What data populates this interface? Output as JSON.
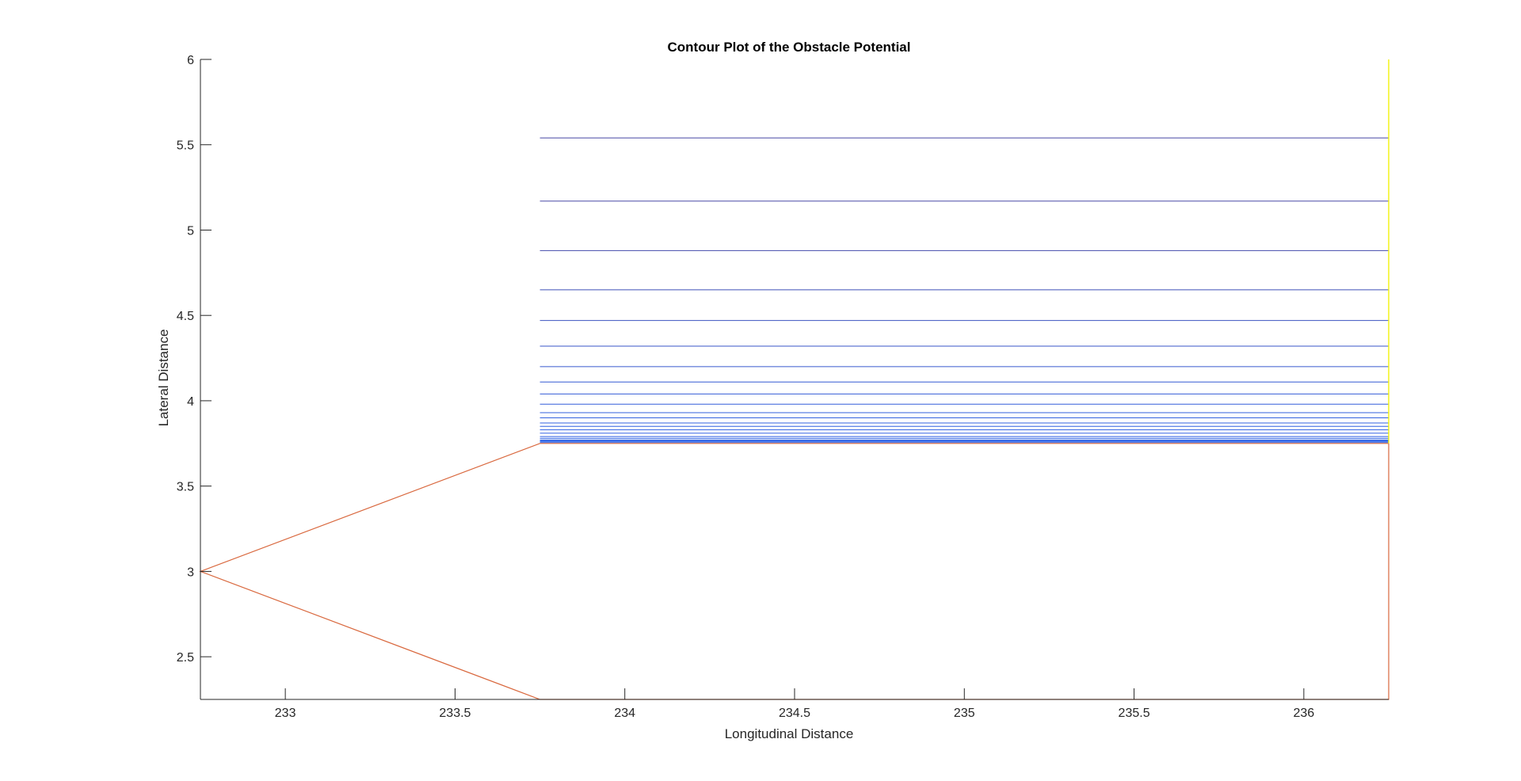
{
  "chart_data": {
    "type": "line",
    "title": "Contour Plot of the Obstacle Potential",
    "xlabel": "Longitudinal Distance",
    "ylabel": "Lateral Distance",
    "xlim": [
      232.75,
      236.25
    ],
    "ylim": [
      2.25,
      6.0
    ],
    "xticks": [
      233,
      233.5,
      234,
      234.5,
      235,
      235.5,
      236
    ],
    "xtick_labels": [
      "233",
      "233.5",
      "234",
      "234.5",
      "235",
      "235.5",
      "236"
    ],
    "yticks": [
      2.5,
      3,
      3.5,
      4,
      4.5,
      5,
      5.5,
      6
    ],
    "ytick_labels": [
      "2.5",
      "3",
      "3.5",
      "4",
      "4.5",
      "5",
      "5.5",
      "6"
    ],
    "grid": false,
    "colors": {
      "obstacle": "#d9683e",
      "contour_low": "#2f63e6",
      "contour_high": "#4646a4",
      "yellow_edge": "#f2f20c",
      "axis": "#262626"
    },
    "contour_x_range": [
      233.75,
      236.25
    ],
    "contour_levels_y": [
      5.54,
      5.17,
      4.88,
      4.65,
      4.47,
      4.32,
      4.2,
      4.11,
      4.04,
      3.98,
      3.93,
      3.9,
      3.87,
      3.85,
      3.83,
      3.81,
      3.79,
      3.78,
      3.77,
      3.765,
      3.76,
      3.755
    ],
    "series": [
      {
        "x": [
          236.25,
          233.75,
          232.75,
          233.75,
          236.25,
          236.25
        ],
        "y": [
          3.75,
          3.75,
          3.0,
          2.25,
          2.25,
          3.75
        ]
      },
      {
        "x": [
          236.25,
          236.25
        ],
        "y": [
          3.75,
          6.0
        ]
      }
    ]
  }
}
